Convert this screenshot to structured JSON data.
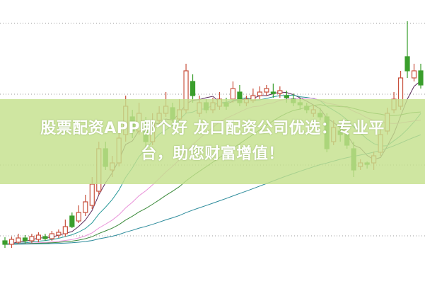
{
  "banner": {
    "title_line1": "股票配资APP哪个好 龙口配资公司优选：专业平",
    "title_line2": "台，助您财富增值！"
  },
  "colors": {
    "up": "#c8503c",
    "down": "#3a9e2c",
    "grid": "#9a9a9a",
    "banner": "#c4e08c"
  },
  "chart_data": {
    "type": "candlestick",
    "grid": true,
    "ma_colors": [
      "#5a2a5a",
      "#2a9a9a",
      "#e890d8",
      "#3a8a3a",
      "#2a8a9a"
    ],
    "ma_periods": [
      5,
      10,
      20,
      30,
      60
    ],
    "candles": [
      [
        60,
        55,
        65,
        50
      ],
      [
        55,
        62,
        66,
        50
      ],
      [
        58,
        64,
        70,
        55
      ],
      [
        64,
        60,
        68,
        56
      ],
      [
        60,
        66,
        70,
        57
      ],
      [
        62,
        68,
        72,
        58
      ],
      [
        66,
        63,
        70,
        60
      ],
      [
        63,
        70,
        74,
        60
      ],
      [
        68,
        72,
        76,
        64
      ],
      [
        70,
        80,
        90,
        66
      ],
      [
        95,
        80,
        100,
        78
      ],
      [
        88,
        100,
        110,
        85
      ],
      [
        100,
        115,
        125,
        95
      ],
      [
        110,
        140,
        150,
        105
      ],
      [
        130,
        190,
        200,
        125
      ],
      [
        190,
        165,
        200,
        160
      ],
      [
        160,
        170,
        180,
        150
      ],
      [
        170,
        205,
        215,
        165
      ],
      [
        210,
        250,
        265,
        200
      ],
      [
        235,
        215,
        245,
        205
      ],
      [
        215,
        240,
        255,
        210
      ],
      [
        225,
        200,
        235,
        190
      ],
      [
        200,
        230,
        240,
        195
      ],
      [
        230,
        240,
        250,
        225
      ],
      [
        240,
        250,
        270,
        235
      ],
      [
        248,
        232,
        255,
        225
      ],
      [
        232,
        245,
        260,
        228
      ],
      [
        245,
        300,
        310,
        240
      ],
      [
        285,
        265,
        295,
        255
      ],
      [
        240,
        255,
        265,
        235
      ],
      [
        255,
        245,
        260,
        240
      ],
      [
        245,
        255,
        262,
        240
      ],
      [
        250,
        260,
        270,
        245
      ],
      [
        255,
        250,
        262,
        245
      ],
      [
        260,
        275,
        285,
        255
      ],
      [
        270,
        255,
        280,
        250
      ],
      [
        255,
        260,
        265,
        250
      ],
      [
        258,
        265,
        275,
        255
      ],
      [
        265,
        270,
        278,
        260
      ],
      [
        270,
        275,
        280,
        265
      ],
      [
        270,
        268,
        282,
        262
      ],
      [
        268,
        272,
        278,
        262
      ],
      [
        265,
        262,
        272,
        255
      ],
      [
        260,
        255,
        268,
        250
      ],
      [
        255,
        252,
        262,
        245
      ],
      [
        250,
        245,
        255,
        240
      ],
      [
        240,
        245,
        252,
        235
      ],
      [
        240,
        235,
        248,
        230
      ],
      [
        235,
        190,
        240,
        185
      ],
      [
        200,
        220,
        230,
        195
      ],
      [
        215,
        210,
        225,
        200
      ],
      [
        210,
        195,
        218,
        190
      ],
      [
        190,
        160,
        200,
        150
      ],
      [
        165,
        170,
        175,
        160
      ],
      [
        170,
        168,
        172,
        162
      ],
      [
        170,
        180,
        186,
        160
      ],
      [
        185,
        210,
        220,
        180
      ],
      [
        215,
        240,
        248,
        210
      ],
      [
        245,
        260,
        270,
        240
      ],
      [
        250,
        290,
        300,
        245
      ],
      [
        320,
        300,
        370,
        290
      ],
      [
        290,
        300,
        310,
        285
      ],
      [
        300,
        280,
        310,
        275
      ]
    ]
  }
}
